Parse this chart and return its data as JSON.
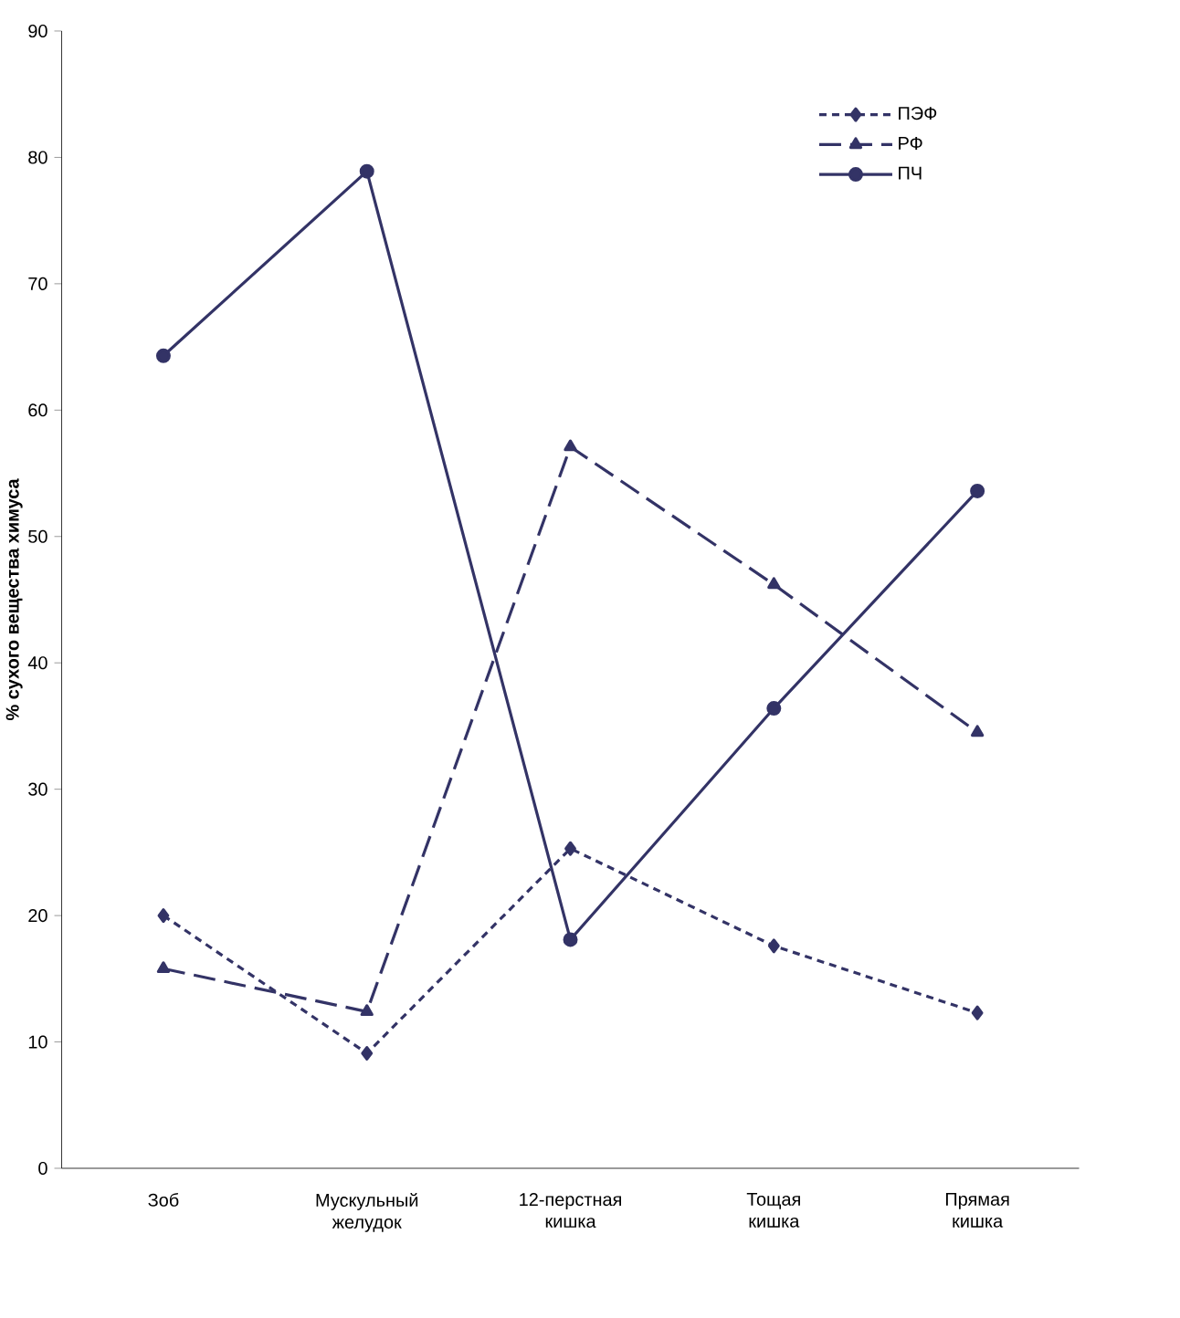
{
  "chart_data": {
    "type": "line",
    "ylabel": "% сухого вещества химуса",
    "categories": [
      "Зоб",
      "Мускульный желудок",
      "12-перстная кишка",
      "Тощая кишка",
      "Прямая кишка"
    ],
    "ylim": [
      0,
      90
    ],
    "yticks": [
      0,
      10,
      20,
      30,
      40,
      50,
      60,
      70,
      80,
      90
    ],
    "grid": false,
    "legend": "top right",
    "series": [
      {
        "name": "ПЭФ",
        "color": "#333366",
        "marker": "diamond",
        "line_style": "dotted",
        "values": [
          20,
          9.1,
          25.3,
          17.6,
          12.3
        ]
      },
      {
        "name": "РФ",
        "color": "#333366",
        "marker": "triangle",
        "line_style": "dashed",
        "values": [
          15.8,
          12.4,
          57.1,
          46.2,
          34.5
        ]
      },
      {
        "name": "ПЧ",
        "color": "#333366",
        "marker": "circle",
        "line_style": "solid",
        "values": [
          64.3,
          78.9,
          18.1,
          36.4,
          53.6
        ]
      }
    ]
  }
}
